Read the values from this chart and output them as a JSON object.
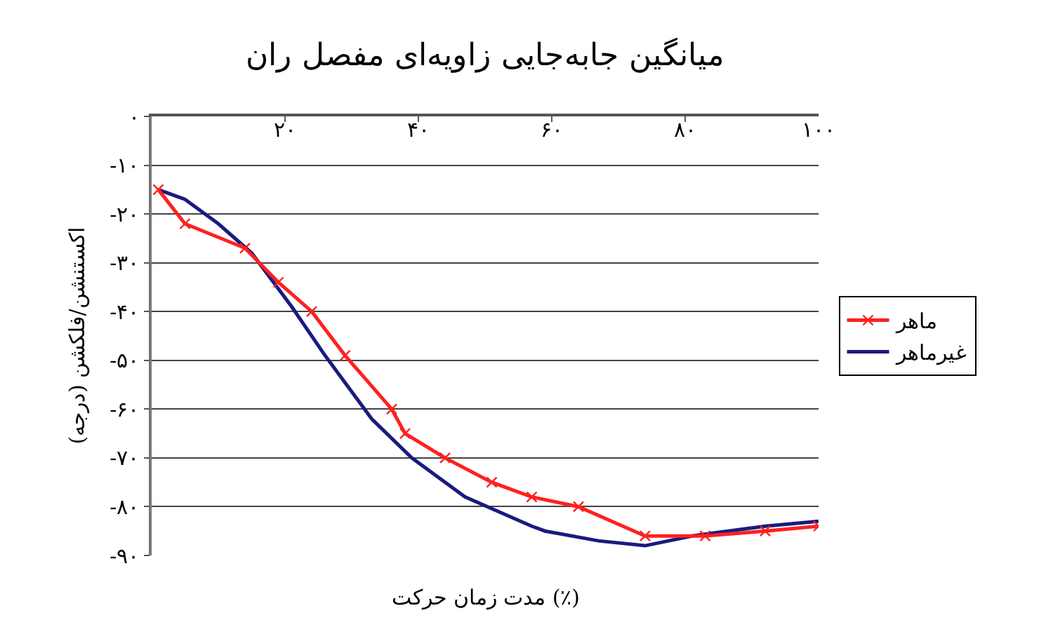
{
  "chart_data": {
    "type": "line",
    "title": "میانگین جابه‌جایی زاویه‌ای مفصل ران",
    "xlabel": "مدت زمان حرکت (٪)",
    "ylabel": "اکستنشن/فلکشن (درجه)",
    "xlim": [
      0,
      100
    ],
    "xticks": [
      {
        "value": 20,
        "label": "۲۰"
      },
      {
        "value": 40,
        "label": "۴۰"
      },
      {
        "value": 60,
        "label": "۶۰"
      },
      {
        "value": 80,
        "label": "۸۰"
      },
      {
        "value": 100,
        "label": "۱۰۰"
      }
    ],
    "ylim": [
      -90,
      0
    ],
    "yticks": [
      {
        "value": 0,
        "label": "۰"
      },
      {
        "value": -10,
        "label": "-۱۰"
      },
      {
        "value": -20,
        "label": "-۲۰"
      },
      {
        "value": -30,
        "label": "-۳۰"
      },
      {
        "value": -40,
        "label": "-۴۰"
      },
      {
        "value": -50,
        "label": "-۵۰"
      },
      {
        "value": -60,
        "label": "-۶۰"
      },
      {
        "value": -70,
        "label": "-۷۰"
      },
      {
        "value": -80,
        "label": "-۸۰"
      },
      {
        "value": -90,
        "label": "-۹۰"
      }
    ],
    "grid": "y",
    "legend": "right",
    "series": [
      {
        "name": "ماهر",
        "color": "#ff2020",
        "marker": "cross",
        "x": [
          1,
          5,
          14,
          19,
          24,
          29,
          36,
          38,
          44,
          51,
          57,
          64,
          74,
          83,
          92,
          100
        ],
        "values": [
          -15,
          -22,
          -27,
          -34,
          -40,
          -49,
          -60,
          -65,
          -70,
          -75,
          -78,
          -80,
          -86,
          -86,
          -85,
          -84
        ]
      },
      {
        "name": "غیرماهر",
        "color": "#1a1a80",
        "marker": "none",
        "x": [
          1,
          5,
          10,
          15,
          21,
          26,
          33,
          39,
          47,
          57,
          59,
          67,
          74,
          81,
          92,
          100
        ],
        "values": [
          -15,
          -17,
          -22,
          -28,
          -39,
          -49,
          -62,
          -70,
          -78,
          -84,
          -85,
          -87,
          -88,
          -86,
          -84,
          -83
        ]
      }
    ]
  }
}
